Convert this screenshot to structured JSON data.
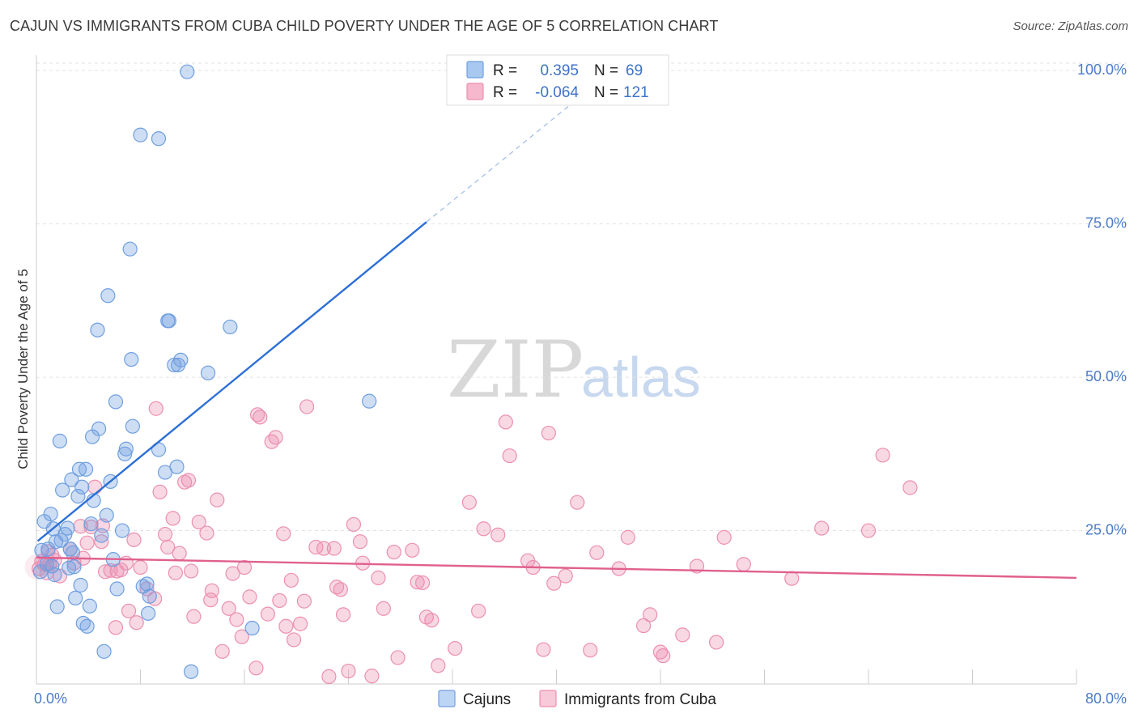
{
  "header": {
    "title": "CAJUN VS IMMIGRANTS FROM CUBA CHILD POVERTY UNDER THE AGE OF 5 CORRELATION CHART",
    "source": "Source: ZipAtlas.com"
  },
  "watermark": {
    "part1": "ZIP",
    "part2": "atlas"
  },
  "legend": {
    "rows": [
      {
        "r_label": "R =",
        "r_value": "0.395",
        "n_label": "N =",
        "n_value": "69",
        "color": "#a8c8f0"
      },
      {
        "r_label": "R =",
        "r_value": "-0.064",
        "n_label": "N =",
        "n_value": "121",
        "color": "#f5b8cc"
      }
    ]
  },
  "bottom_legend": {
    "items": [
      "Cajuns",
      "Immigrants from Cuba"
    ]
  },
  "chart_data": {
    "type": "scatter",
    "title": "CAJUN VS IMMIGRANTS FROM CUBA CHILD POVERTY UNDER THE AGE OF 5 CORRELATION CHART",
    "xlabel": "",
    "ylabel": "Child Poverty Under the Age of 5",
    "xlim": [
      0,
      80
    ],
    "ylim": [
      0,
      102
    ],
    "x_tick_labels": [
      "0.0%",
      "80.0%"
    ],
    "y_ticks": [
      25,
      50,
      75,
      100
    ],
    "y_tick_labels": [
      "25.0%",
      "50.0%",
      "75.0%",
      "100.0%"
    ],
    "grid": true,
    "legend_position": "top-center",
    "colors": {
      "cajuns": "#6f9fe0",
      "cuba": "#ec8fb0",
      "cajuns_line": "#2c6fd6",
      "cuba_line": "#e0608e"
    },
    "series": [
      {
        "name": "Cajuns",
        "trend": {
          "x0": 0.1,
          "y0": 23.3,
          "x1": 30.0,
          "y1": 75.3,
          "dash_x1": 44.0,
          "dash_y1": 99.5
        },
        "points": [
          [
            0.3,
            18.3
          ],
          [
            0.4,
            21.8
          ],
          [
            0.6,
            26.5
          ],
          [
            0.9,
            22.0
          ],
          [
            1.1,
            27.7
          ],
          [
            1.3,
            25.3
          ],
          [
            1.5,
            23.2
          ],
          [
            1.6,
            12.6
          ],
          [
            1.8,
            39.6
          ],
          [
            1.9,
            23.4
          ],
          [
            2.0,
            31.6
          ],
          [
            2.2,
            24.4
          ],
          [
            2.4,
            25.4
          ],
          [
            2.5,
            18.9
          ],
          [
            2.6,
            22.0
          ],
          [
            2.7,
            33.3
          ],
          [
            2.9,
            19.1
          ],
          [
            3.0,
            14.0
          ],
          [
            3.2,
            30.6
          ],
          [
            3.3,
            35.0
          ],
          [
            3.5,
            32.1
          ],
          [
            3.6,
            9.9
          ],
          [
            3.8,
            35.0
          ],
          [
            3.9,
            9.4
          ],
          [
            4.1,
            12.7
          ],
          [
            4.2,
            26.1
          ],
          [
            4.3,
            40.3
          ],
          [
            4.4,
            29.9
          ],
          [
            4.7,
            57.7
          ],
          [
            4.8,
            41.6
          ],
          [
            5.0,
            24.2
          ],
          [
            5.2,
            5.3
          ],
          [
            5.4,
            27.5
          ],
          [
            5.5,
            63.3
          ],
          [
            5.7,
            33.0
          ],
          [
            6.2,
            15.5
          ],
          [
            6.6,
            25.0
          ],
          [
            6.8,
            37.5
          ],
          [
            6.9,
            38.3
          ],
          [
            7.4,
            42.0
          ],
          [
            7.3,
            52.9
          ],
          [
            7.2,
            70.9
          ],
          [
            8.0,
            89.5
          ],
          [
            8.2,
            15.9
          ],
          [
            8.5,
            16.3
          ],
          [
            8.6,
            11.5
          ],
          [
            8.7,
            14.3
          ],
          [
            9.4,
            88.9
          ],
          [
            9.4,
            38.2
          ],
          [
            9.9,
            34.5
          ],
          [
            10.1,
            59.2
          ],
          [
            10.2,
            59.2
          ],
          [
            10.6,
            52.0
          ],
          [
            10.8,
            35.4
          ],
          [
            10.9,
            52.0
          ],
          [
            11.1,
            52.8
          ],
          [
            11.6,
            99.8
          ],
          [
            11.9,
            2.0
          ],
          [
            13.2,
            50.7
          ],
          [
            14.9,
            58.2
          ],
          [
            16.6,
            9.1
          ],
          [
            25.6,
            46.1
          ],
          [
            6.1,
            46.0
          ],
          [
            1.2,
            19.2
          ],
          [
            2.8,
            21.4
          ],
          [
            3.4,
            16.1
          ],
          [
            5.9,
            20.3
          ],
          [
            0.8,
            19.6
          ],
          [
            1.4,
            17.8
          ]
        ]
      },
      {
        "name": "Immigrants from Cuba",
        "trend": {
          "x0": 0.0,
          "y0": 20.6,
          "x1": 80.0,
          "y1": 17.3
        },
        "points": [
          [
            0.2,
            18.8
          ],
          [
            0.4,
            20.0
          ],
          [
            0.6,
            19.5
          ],
          [
            0.8,
            18.1
          ],
          [
            1.0,
            19.5
          ],
          [
            1.2,
            21.0
          ],
          [
            1.4,
            20.2
          ],
          [
            2.6,
            22.0
          ],
          [
            2.9,
            19.7
          ],
          [
            3.4,
            25.7
          ],
          [
            3.6,
            20.5
          ],
          [
            3.9,
            23.0
          ],
          [
            4.2,
            25.6
          ],
          [
            4.5,
            32.1
          ],
          [
            5.0,
            23.2
          ],
          [
            5.1,
            25.8
          ],
          [
            5.3,
            18.3
          ],
          [
            5.7,
            18.5
          ],
          [
            6.1,
            9.2
          ],
          [
            6.2,
            18.4
          ],
          [
            6.5,
            18.6
          ],
          [
            6.9,
            19.7
          ],
          [
            7.1,
            11.9
          ],
          [
            7.5,
            23.5
          ],
          [
            7.7,
            10.0
          ],
          [
            8.0,
            19.0
          ],
          [
            8.5,
            15.5
          ],
          [
            9.1,
            13.9
          ],
          [
            9.2,
            44.9
          ],
          [
            9.5,
            31.3
          ],
          [
            9.9,
            24.4
          ],
          [
            10.1,
            22.3
          ],
          [
            10.5,
            27.0
          ],
          [
            10.7,
            18.1
          ],
          [
            11.0,
            21.3
          ],
          [
            11.4,
            32.9
          ],
          [
            11.7,
            33.2
          ],
          [
            11.9,
            18.4
          ],
          [
            12.1,
            11.0
          ],
          [
            12.5,
            26.4
          ],
          [
            13.1,
            24.6
          ],
          [
            13.4,
            13.7
          ],
          [
            13.5,
            15.2
          ],
          [
            13.9,
            30.0
          ],
          [
            14.3,
            5.3
          ],
          [
            14.8,
            12.3
          ],
          [
            15.1,
            18.0
          ],
          [
            15.4,
            10.5
          ],
          [
            15.8,
            7.7
          ],
          [
            16.0,
            19.0
          ],
          [
            16.4,
            14.2
          ],
          [
            16.9,
            2.6
          ],
          [
            17.0,
            43.9
          ],
          [
            17.2,
            43.5
          ],
          [
            17.8,
            11.4
          ],
          [
            18.1,
            39.5
          ],
          [
            18.4,
            40.2
          ],
          [
            18.7,
            13.6
          ],
          [
            19.0,
            24.5
          ],
          [
            19.2,
            9.4
          ],
          [
            19.6,
            16.9
          ],
          [
            19.8,
            7.2
          ],
          [
            20.3,
            9.8
          ],
          [
            20.6,
            13.5
          ],
          [
            20.8,
            45.2
          ],
          [
            21.5,
            22.3
          ],
          [
            22.1,
            22.1
          ],
          [
            22.5,
            1.2
          ],
          [
            22.9,
            22.1
          ],
          [
            23.1,
            15.8
          ],
          [
            23.4,
            15.4
          ],
          [
            23.6,
            11.3
          ],
          [
            24.0,
            2.1
          ],
          [
            24.4,
            26.0
          ],
          [
            24.9,
            23.2
          ],
          [
            25.1,
            19.7
          ],
          [
            25.8,
            1.3
          ],
          [
            26.3,
            17.3
          ],
          [
            26.7,
            12.3
          ],
          [
            27.5,
            21.5
          ],
          [
            27.8,
            4.3
          ],
          [
            28.9,
            21.8
          ],
          [
            29.3,
            16.6
          ],
          [
            29.7,
            16.5
          ],
          [
            30.0,
            10.9
          ],
          [
            30.4,
            10.4
          ],
          [
            30.9,
            3.0
          ],
          [
            32.2,
            5.8
          ],
          [
            33.3,
            29.6
          ],
          [
            34.0,
            11.9
          ],
          [
            34.4,
            25.3
          ],
          [
            35.5,
            24.3
          ],
          [
            36.1,
            42.7
          ],
          [
            36.4,
            37.2
          ],
          [
            37.8,
            20.1
          ],
          [
            38.2,
            19.0
          ],
          [
            39.0,
            5.6
          ],
          [
            39.4,
            40.9
          ],
          [
            39.8,
            16.4
          ],
          [
            40.7,
            17.6
          ],
          [
            41.6,
            29.6
          ],
          [
            42.6,
            5.5
          ],
          [
            43.1,
            21.4
          ],
          [
            44.8,
            18.8
          ],
          [
            45.5,
            23.9
          ],
          [
            46.7,
            9.5
          ],
          [
            47.2,
            11.3
          ],
          [
            48.0,
            5.2
          ],
          [
            48.2,
            4.6
          ],
          [
            49.7,
            8.0
          ],
          [
            50.8,
            19.2
          ],
          [
            52.3,
            6.8
          ],
          [
            52.9,
            23.9
          ],
          [
            54.4,
            19.5
          ],
          [
            58.1,
            17.2
          ],
          [
            60.4,
            25.4
          ],
          [
            64.0,
            25.0
          ],
          [
            65.1,
            37.3
          ],
          [
            67.2,
            32.0
          ],
          [
            1.8,
            17.6
          ],
          [
            0.9,
            21.6
          ]
        ]
      }
    ]
  }
}
